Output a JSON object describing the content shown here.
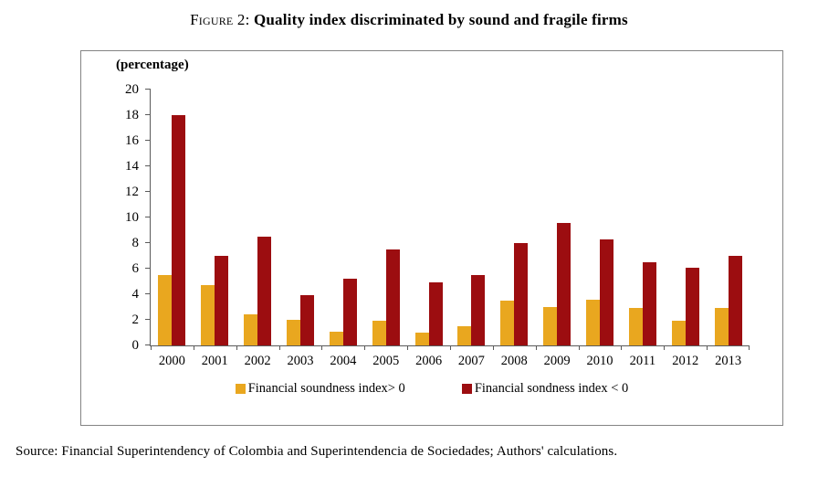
{
  "figure": {
    "label": "Figure 2:",
    "title": "Quality index discriminated by sound and fragile firms"
  },
  "source_note": "Source: Financial Superintendency of Colombia and Superintendencia de Sociedades; Authors' calculations.",
  "chart_data": {
    "type": "bar",
    "title": "Quality index discriminated by sound and fragile firms",
    "unit_label": "(percentage)",
    "categories": [
      "2000",
      "2001",
      "2002",
      "2003",
      "2004",
      "2005",
      "2006",
      "2007",
      "2008",
      "2009",
      "2010",
      "2011",
      "2012",
      "2013"
    ],
    "series": [
      {
        "name": "Financial soundness index> 0",
        "color": "#E9A71F",
        "values": [
          5.5,
          4.7,
          2.4,
          2.0,
          1.1,
          1.9,
          1.0,
          1.5,
          3.5,
          3.0,
          3.6,
          2.9,
          1.95,
          2.9
        ]
      },
      {
        "name": "Financial sondness index < 0",
        "color": "#9C0D10",
        "values": [
          18.0,
          7.0,
          8.5,
          3.9,
          5.2,
          7.5,
          4.9,
          5.5,
          8.0,
          9.6,
          8.3,
          6.5,
          6.1,
          7.0
        ]
      }
    ],
    "ylim": [
      0,
      20
    ],
    "ytick_step": 2,
    "grid": false,
    "legend_position": "bottom",
    "axis_color": "#5a5a5a"
  }
}
